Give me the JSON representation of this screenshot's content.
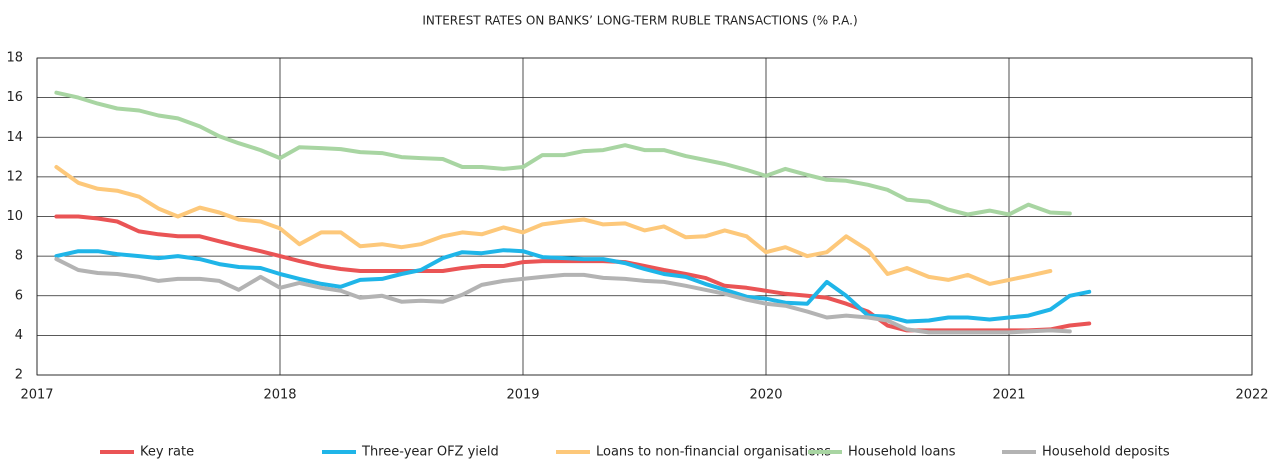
{
  "chart_data": {
    "type": "line",
    "title": "INTEREST RATES ON BANKS’ LONG-TERM RUBLE TRANSACTIONS (% P.A.)",
    "x": [
      2017.08,
      2017.17,
      2017.25,
      2017.33,
      2017.42,
      2017.5,
      2017.58,
      2017.67,
      2017.75,
      2017.83,
      2017.92,
      2018.0,
      2018.08,
      2018.17,
      2018.25,
      2018.33,
      2018.42,
      2018.5,
      2018.58,
      2018.67,
      2018.75,
      2018.83,
      2018.92,
      2019.0,
      2019.08,
      2019.17,
      2019.25,
      2019.33,
      2019.42,
      2019.5,
      2019.58,
      2019.67,
      2019.75,
      2019.83,
      2019.92,
      2020.0,
      2020.08,
      2020.17,
      2020.25,
      2020.33,
      2020.42,
      2020.5,
      2020.58,
      2020.67,
      2020.75,
      2020.83,
      2020.92,
      2021.0,
      2021.08,
      2021.17,
      2021.25,
      2021.33
    ],
    "series": [
      {
        "name": "Key rate",
        "color": "#ea5455",
        "values": [
          10,
          10,
          9.9,
          9.75,
          9.25,
          9.1,
          9,
          9,
          8.75,
          8.5,
          8.25,
          8,
          7.75,
          7.5,
          7.35,
          7.25,
          7.25,
          7.25,
          7.25,
          7.25,
          7.4,
          7.5,
          7.5,
          7.7,
          7.75,
          7.75,
          7.75,
          7.75,
          7.7,
          7.5,
          7.3,
          7.1,
          6.9,
          6.5,
          6.4,
          6.25,
          6.1,
          6,
          5.9,
          5.6,
          5.2,
          4.5,
          4.25,
          4.25,
          4.25,
          4.25,
          4.25,
          4.25,
          4.25,
          4.3,
          4.5,
          4.6
        ]
      },
      {
        "name": "Three-year OFZ yield",
        "color": "#1fb5e8",
        "values": [
          8,
          8.25,
          8.25,
          8.1,
          8,
          7.9,
          8,
          7.85,
          7.6,
          7.45,
          7.4,
          7.1,
          6.85,
          6.6,
          6.45,
          6.8,
          6.85,
          7.1,
          7.3,
          7.9,
          8.2,
          8.15,
          8.3,
          8.25,
          7.95,
          7.9,
          7.85,
          7.85,
          7.65,
          7.35,
          7.1,
          6.95,
          6.6,
          6.3,
          5.95,
          5.85,
          5.65,
          5.6,
          6.7,
          6,
          5,
          4.95,
          4.7,
          4.75,
          4.9,
          4.9,
          4.8,
          4.9,
          5,
          5.3,
          6,
          6.2
        ]
      },
      {
        "name": "Loans to non-financial organisations",
        "color": "#fdc87a",
        "values": [
          12.5,
          11.7,
          11.4,
          11.3,
          11,
          10.4,
          10,
          10.45,
          10.2,
          9.85,
          9.75,
          9.4,
          8.6,
          9.2,
          9.2,
          8.5,
          8.6,
          8.45,
          8.6,
          9,
          9.2,
          9.1,
          9.45,
          9.2,
          9.6,
          9.75,
          9.85,
          9.6,
          9.65,
          9.3,
          9.5,
          8.95,
          9,
          9.3,
          9,
          8.2,
          8.45,
          8,
          8.2,
          9,
          8.3,
          7.1,
          7.4,
          6.95,
          6.8,
          7.05,
          6.6,
          6.8,
          7,
          7.25,
          null,
          null
        ]
      },
      {
        "name": "Household loans",
        "color": "#a8d5a2",
        "values": [
          16.25,
          16,
          15.7,
          15.45,
          15.35,
          15.1,
          14.95,
          14.55,
          14.05,
          13.7,
          13.35,
          12.95,
          13.5,
          13.45,
          13.4,
          13.25,
          13.2,
          13,
          12.95,
          12.9,
          12.5,
          12.5,
          12.4,
          12.5,
          13.1,
          13.1,
          13.3,
          13.35,
          13.6,
          13.35,
          13.35,
          13.05,
          12.85,
          12.65,
          12.35,
          12.05,
          12.4,
          12.1,
          11.85,
          11.8,
          11.6,
          11.35,
          10.85,
          10.75,
          10.35,
          10.1,
          10.3,
          10.1,
          10.6,
          10.2,
          10.15,
          null
        ]
      },
      {
        "name": "Household deposits",
        "color": "#b3b3b3",
        "values": [
          7.85,
          7.3,
          7.15,
          7.1,
          6.95,
          6.75,
          6.85,
          6.85,
          6.75,
          6.3,
          6.95,
          6.4,
          6.65,
          6.4,
          6.25,
          5.9,
          6,
          5.7,
          5.75,
          5.7,
          6.05,
          6.55,
          6.75,
          6.85,
          6.95,
          7.05,
          7.05,
          6.9,
          6.85,
          6.75,
          6.7,
          6.5,
          6.3,
          6.1,
          5.8,
          5.6,
          5.5,
          5.2,
          4.9,
          5,
          4.9,
          4.75,
          4.3,
          4.15,
          4.15,
          4.15,
          4.15,
          4.15,
          4.2,
          4.25,
          4.2,
          null
        ]
      }
    ],
    "xlim": [
      2017,
      2022
    ],
    "xticks": [
      2017,
      2018,
      2019,
      2020,
      2021,
      2022
    ],
    "ylim": [
      2,
      18
    ],
    "yticks": [
      2,
      4,
      6,
      8,
      10,
      12,
      14,
      16,
      18
    ],
    "grid": true
  }
}
